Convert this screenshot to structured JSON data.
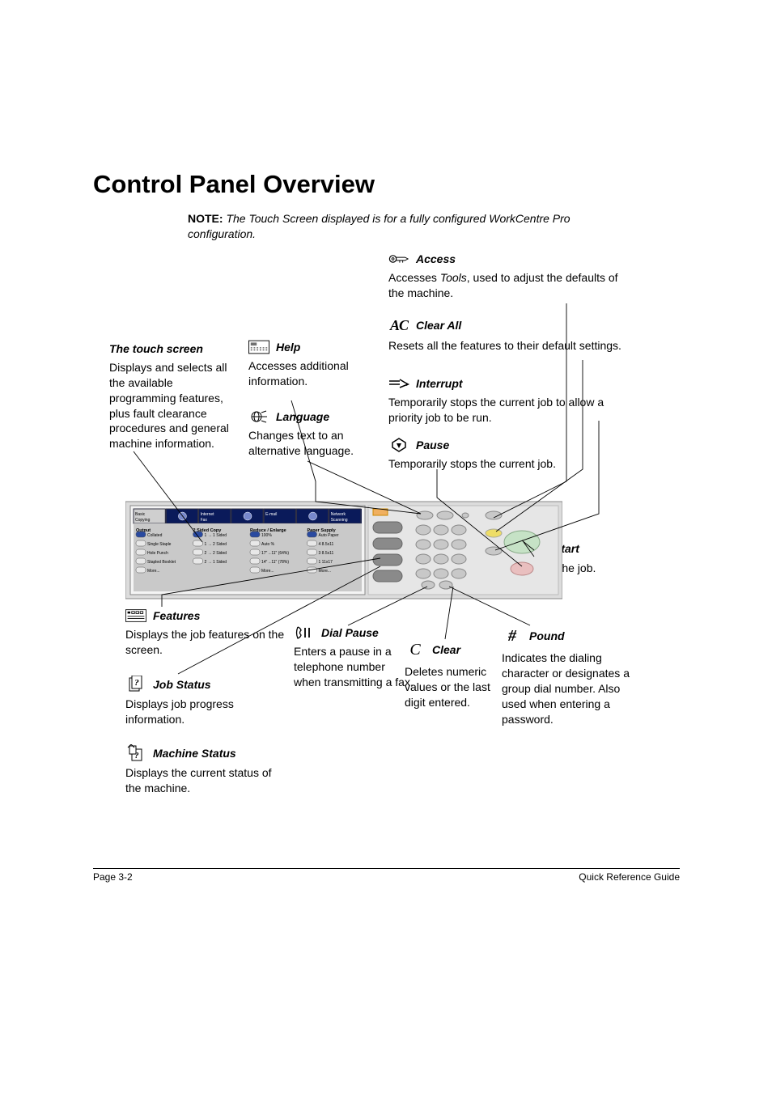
{
  "title": "Control Panel Overview",
  "note": {
    "label": "NOTE:",
    "body": "The Touch Screen displayed is for a fully configured WorkCentre Pro configuration."
  },
  "callouts": {
    "touch": {
      "title": "The touch screen",
      "body": "Displays and selects all the available programming features, plus fault clearance procedures and general machine information."
    },
    "help": {
      "title": "Help",
      "body": "Accesses additional information."
    },
    "language": {
      "title": "Language",
      "body": "Changes text to an alternative language."
    },
    "access": {
      "title": "Access",
      "body_pre": "Accesses ",
      "body_em": "Tools",
      "body_post": ", used to adjust the defaults of the machine."
    },
    "clearall": {
      "title": "Clear All",
      "body": "Resets all the features to their default settings."
    },
    "interrupt": {
      "title": "Interrupt",
      "body": "Temporarily stops the current job to allow a priority job to be run."
    },
    "pause": {
      "title": "Pause",
      "body": "Temporarily stops the current job."
    },
    "start": {
      "title": "Start",
      "body": "Starts the job."
    },
    "features": {
      "title": "Features",
      "body": "Displays the job features on the screen."
    },
    "jobstatus": {
      "title": "Job Status",
      "body": "Displays job progress information."
    },
    "machstatus": {
      "title": "Machine Status",
      "body": "Displays the current status of the machine."
    },
    "dialpause": {
      "title": "Dial Pause",
      "body": "Enters a pause in a telephone number when transmitting a fax."
    },
    "clear": {
      "title": "Clear",
      "body": "Deletes numeric values or the last digit entered."
    },
    "pound": {
      "title": "Pound",
      "body": "Indicates the dialing character or designates a group dial number. Also used when entering a password."
    }
  },
  "touchscreen": {
    "tabs": [
      "Basic Copying",
      "",
      "Internet Fax",
      "",
      "E-mail",
      "",
      "Network Scanning"
    ],
    "cols": {
      "output": {
        "header": "Output",
        "items": [
          "Collated",
          "Single Staple",
          "Hole Punch",
          "Stapled Booklet",
          "More..."
        ]
      },
      "twosided": {
        "header": "2 Sided Copy",
        "items": [
          "1 → 1 Sided",
          "1 → 2 Sided",
          "2 → 2 Sided",
          "2 → 1 Sided"
        ]
      },
      "reduce": {
        "header": "Reduce / Enlarge",
        "items": [
          "100%",
          "Auto %",
          "17\"→11\" (64%)",
          "14\"→11\" (78%)",
          "More..."
        ]
      },
      "paper": {
        "header": "Paper Supply",
        "items": [
          "Auto Paper",
          "4 8.5x11",
          "3 8.5x11",
          "1 11x17",
          "More..."
        ]
      }
    },
    "ui_colors": {
      "bg": "#0a1a5a",
      "panel": "#c9c9c9",
      "text": "#000000",
      "tab_bg": "#0a1a5a",
      "tab_fg": "#ffffff"
    }
  },
  "footer": {
    "left": "Page 3-2",
    "right": "Quick Reference Guide"
  },
  "colors": {
    "text": "#000000",
    "line": "#000000",
    "panel_grey": "#d0d0d0",
    "panel_dark": "#707070",
    "button_grey": "#b8b8b8"
  }
}
